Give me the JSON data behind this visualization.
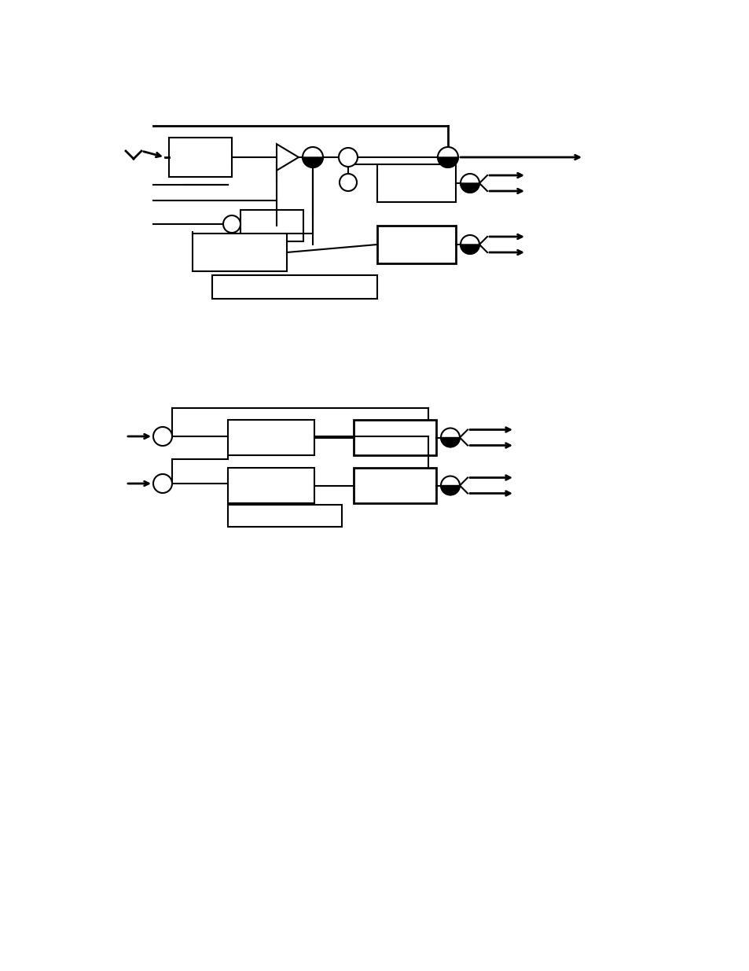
{
  "bg_color": "#ffffff",
  "line_color": "#000000",
  "fig_width": 9.54,
  "fig_height": 12.35,
  "dpi": 100
}
